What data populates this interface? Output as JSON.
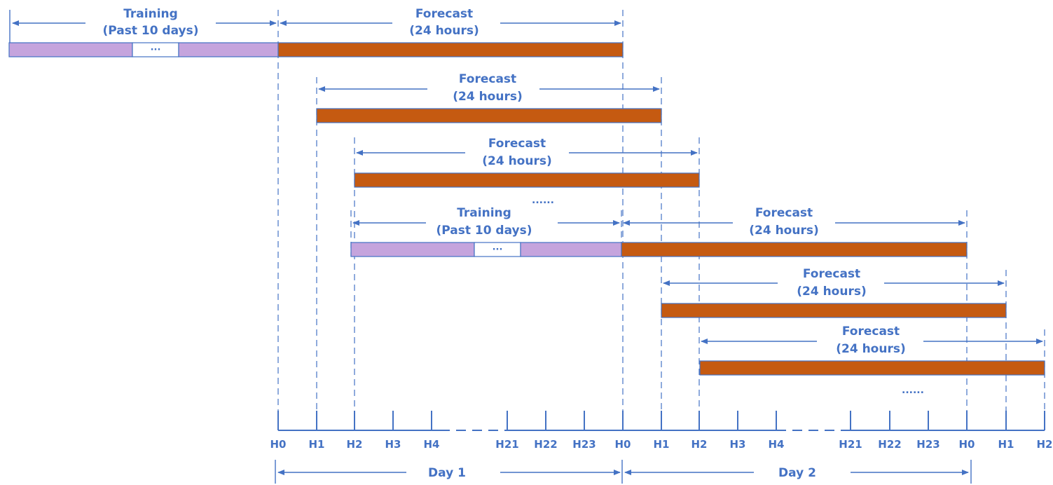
{
  "top_window": {
    "training": {
      "title": "Training",
      "subtitle": "(Past 10 days)",
      "gap_text": "···"
    },
    "forecast": {
      "title": "Forecast",
      "subtitle": "(24 hours)"
    }
  },
  "forecast_rows": [
    {
      "title": "Forecast",
      "subtitle": "(24 hours)"
    },
    {
      "title": "Forecast",
      "subtitle": "(24 hours)"
    }
  ],
  "ellipsis_1": "......",
  "second_window": {
    "training": {
      "title": "Training",
      "subtitle": "(Past 10 days)",
      "gap_text": "···"
    },
    "forecast": {
      "title": "Forecast",
      "subtitle": "(24 hours)"
    }
  },
  "forecast_rows_2": [
    {
      "title": "Forecast",
      "subtitle": "(24 hours)"
    },
    {
      "title": "Forecast",
      "subtitle": "(24 hours)"
    }
  ],
  "ellipsis_2": "......",
  "axis_ticks": [
    "H0",
    "H1",
    "H2",
    "H3",
    "H4",
    "H21",
    "H22",
    "H23",
    "H0",
    "H1",
    "H2",
    "H3",
    "H4",
    "H21",
    "H22",
    "H23",
    "H0",
    "H1",
    "H2"
  ],
  "days": [
    "Day 1",
    "Day 2"
  ],
  "colors": {
    "line": "#4472c4",
    "forecast_bar": "#c55a11",
    "training_bar": "#c5a4dd"
  }
}
